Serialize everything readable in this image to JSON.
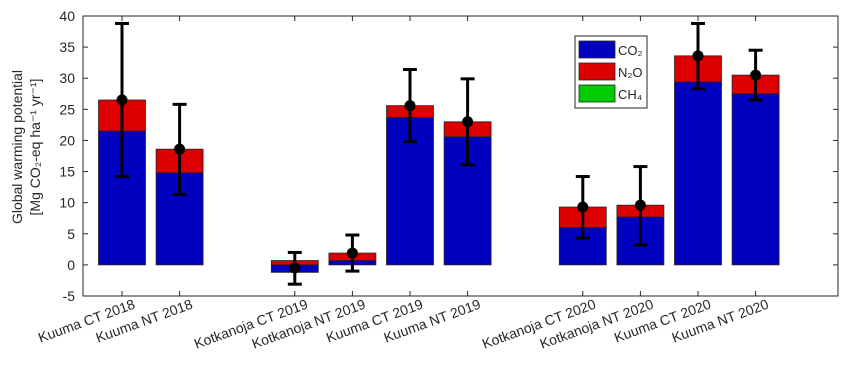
{
  "chart_data": {
    "type": "bar",
    "stacked": true,
    "ylabel_line1": "Global warming potential",
    "ylabel_line2": "[Mg CO₂-eq ha⁻¹ yr⁻¹]",
    "ylim": [
      -5,
      40
    ],
    "yticks": [
      -5,
      0,
      5,
      10,
      15,
      20,
      25,
      30,
      35,
      40
    ],
    "grid": false,
    "legend_position": "top-right",
    "groups": [
      [
        0,
        1
      ],
      [
        2,
        3,
        4,
        5
      ],
      [
        6,
        7,
        8,
        9
      ]
    ],
    "categories": [
      "Kuuma CT 2018",
      "Kuuma NT 2018",
      "Kotkanoja CT 2019",
      "Kotkanoja NT 2019",
      "Kuuma CT 2019",
      "Kuuma NT 2019",
      "Kotkanoja CT 2020",
      "Kotkanoja NT 2020",
      "Kuuma CT 2020",
      "Kuuma NT 2020"
    ],
    "series": [
      {
        "name": "CO₂",
        "color": "#0000c0",
        "values": [
          21.5,
          14.8,
          -1.2,
          0.7,
          23.7,
          20.6,
          6.0,
          7.7,
          29.4,
          27.5
        ]
      },
      {
        "name": "N₂O",
        "color": "#dd0000",
        "values": [
          5.0,
          3.8,
          0.7,
          1.2,
          1.9,
          2.4,
          3.3,
          1.9,
          4.2,
          3.0
        ]
      },
      {
        "name": "CH₄",
        "color": "#00cc00",
        "values": [
          0,
          0,
          0,
          0,
          0,
          0,
          0,
          0,
          0,
          0
        ]
      }
    ],
    "totals": [
      26.5,
      18.6,
      -0.5,
      1.9,
      25.6,
      23.0,
      9.3,
      9.6,
      33.6,
      30.5
    ],
    "error_low": [
      14.2,
      11.3,
      -3.1,
      -1.0,
      19.8,
      16.1,
      4.3,
      3.2,
      28.3,
      26.5
    ],
    "error_high": [
      38.8,
      25.8,
      2.0,
      4.8,
      31.4,
      29.9,
      14.2,
      15.8,
      38.8,
      34.5
    ]
  }
}
